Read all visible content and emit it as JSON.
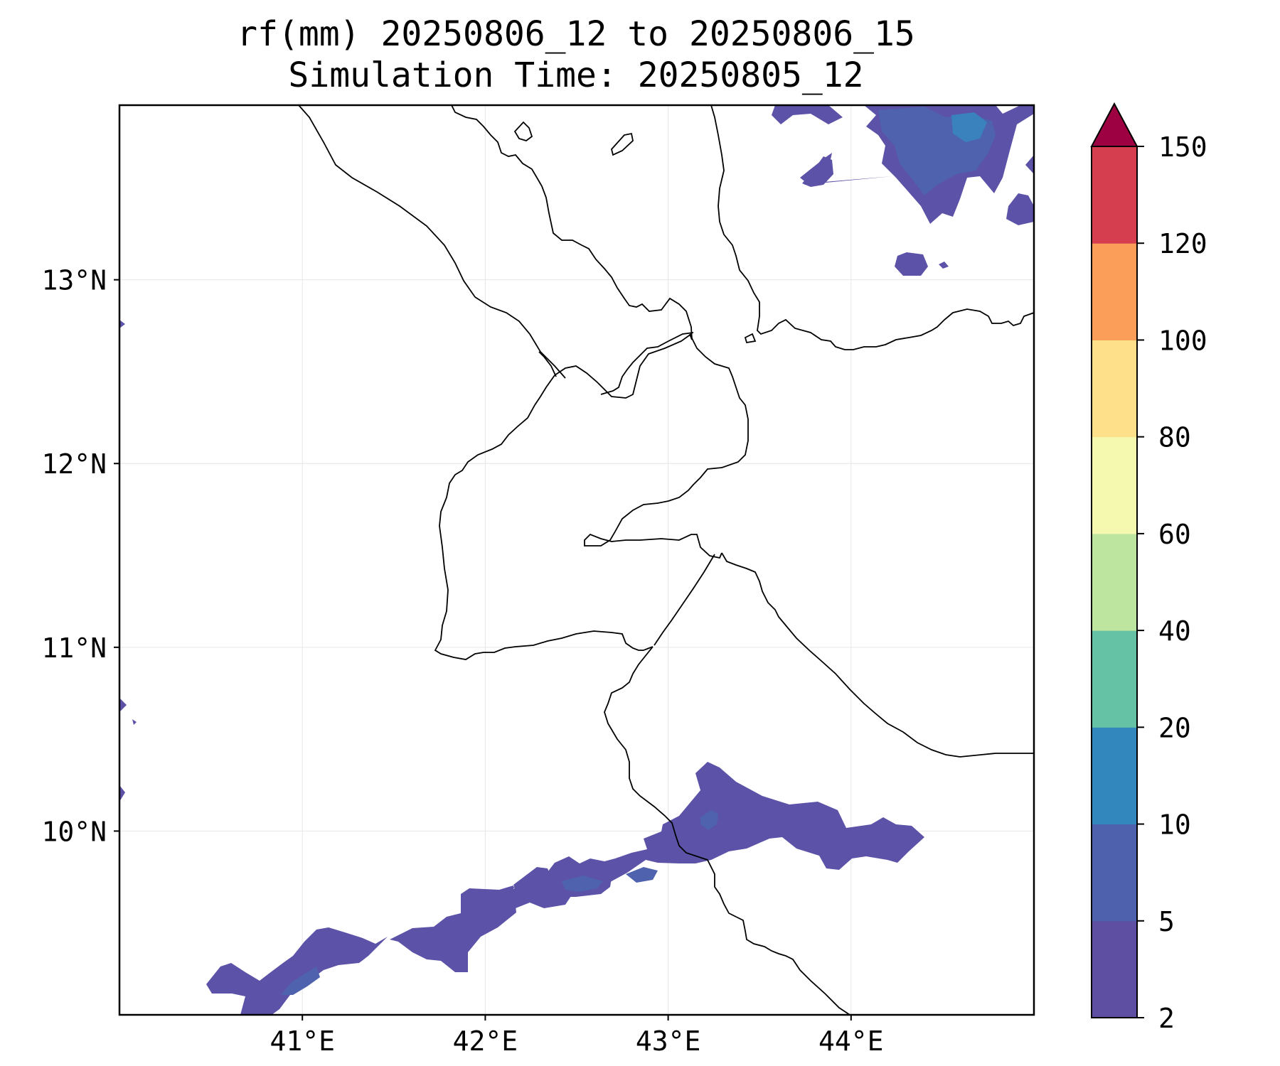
{
  "title_lines": [
    "rf(mm) 20250806_12 to 20250806_15",
    "Simulation Time: 20250805_12"
  ],
  "map": {
    "lon_range": [
      40.0,
      45.0
    ],
    "lat_range": [
      9.0,
      13.95
    ],
    "grid": true,
    "lon_ticks": [
      {
        "value": 41,
        "label": "41°E"
      },
      {
        "value": 42,
        "label": "42°E"
      },
      {
        "value": 43,
        "label": "43°E"
      },
      {
        "value": 44,
        "label": "44°E"
      }
    ],
    "lat_ticks": [
      {
        "value": 10,
        "label": "10°N"
      },
      {
        "value": 11,
        "label": "11°N"
      },
      {
        "value": 12,
        "label": "12°N"
      },
      {
        "value": 13,
        "label": "13°N"
      }
    ]
  },
  "colorbar": {
    "levels": [
      2,
      5,
      10,
      20,
      40,
      60,
      80,
      100,
      120,
      150
    ],
    "tick_labels": [
      "2",
      "5",
      "10",
      "20",
      "40",
      "60",
      "80",
      "100",
      "120",
      "150"
    ],
    "colors": [
      "#5e4fa2",
      "#4e61ac",
      "#3288bd",
      "#66c2a5",
      "#bee5a0",
      "#f5f9b0",
      "#fee08b",
      "#fa9e5a",
      "#d53e4f"
    ],
    "extend_color": "#9e0142",
    "extend": "max"
  },
  "colors": {
    "land_outline": "#000000",
    "grid": "#e6e6e6",
    "rain_low": "#5c52a7",
    "rain_mid": "#4f62ae",
    "rain_10_20": "#3a82bd"
  }
}
